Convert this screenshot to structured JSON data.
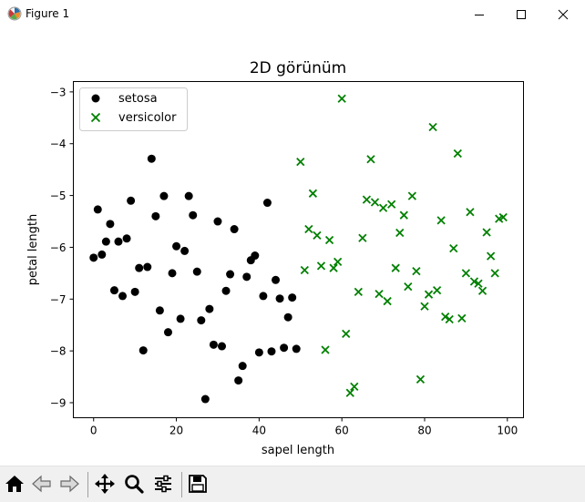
{
  "window": {
    "title": "Figure 1",
    "icons": [
      "matplotlib-figure-icon",
      "minimize-icon",
      "maximize-icon",
      "close-icon"
    ]
  },
  "toolbar": {
    "buttons": [
      "home-icon",
      "back-icon",
      "forward-icon",
      "pan-icon",
      "zoom-icon",
      "configure-subplots-icon",
      "save-icon"
    ]
  },
  "colors": {
    "setosa": "#000000",
    "versicolor": "#008000",
    "toolbar_bg": "#f0f0f0"
  },
  "chart_data": {
    "type": "scatter",
    "title": "2D görünüm",
    "xlabel": "sapel length",
    "ylabel": "petal length",
    "xlim": [
      -4.9,
      103.9
    ],
    "ylim": [
      -9.29,
      -2.8
    ],
    "xticks": [
      0,
      20,
      40,
      60,
      80,
      100
    ],
    "xtick_labels": [
      "0",
      "20",
      "40",
      "60",
      "80",
      "100"
    ],
    "yticks": [
      -3,
      -4,
      -5,
      -6,
      -7,
      -8,
      -9
    ],
    "ytick_labels": [
      "−3",
      "−4",
      "−5",
      "−6",
      "−7",
      "−8",
      "−9"
    ],
    "grid": false,
    "legend_position": "upper-left",
    "series": [
      {
        "name": "setosa",
        "marker": "circle",
        "color": "#000000",
        "points": [
          [
            0,
            -6.2
          ],
          [
            1,
            -5.27
          ],
          [
            2,
            -6.14
          ],
          [
            3,
            -5.89
          ],
          [
            4,
            -5.55
          ],
          [
            5,
            -6.83
          ],
          [
            6,
            -5.89
          ],
          [
            7,
            -6.94
          ],
          [
            8,
            -5.83
          ],
          [
            9,
            -5.1
          ],
          [
            10,
            -6.86
          ],
          [
            11,
            -6.4
          ],
          [
            12,
            -7.99
          ],
          [
            13,
            -6.38
          ],
          [
            14,
            -4.29
          ],
          [
            15,
            -5.4
          ],
          [
            16,
            -7.22
          ],
          [
            17,
            -5.01
          ],
          [
            18,
            -7.64
          ],
          [
            19,
            -6.5
          ],
          [
            20,
            -5.98
          ],
          [
            21,
            -7.38
          ],
          [
            22,
            -6.07
          ],
          [
            23,
            -5.01
          ],
          [
            24,
            -5.38
          ],
          [
            25,
            -6.47
          ],
          [
            26,
            -7.41
          ],
          [
            27,
            -8.93
          ],
          [
            28,
            -7.19
          ],
          [
            29,
            -7.88
          ],
          [
            30,
            -5.5
          ],
          [
            31,
            -7.91
          ],
          [
            32,
            -6.84
          ],
          [
            33,
            -6.52
          ],
          [
            34,
            -5.65
          ],
          [
            35,
            -8.57
          ],
          [
            36,
            -8.29
          ],
          [
            37,
            -6.57
          ],
          [
            38,
            -6.25
          ],
          [
            39,
            -6.16
          ],
          [
            40,
            -8.03
          ],
          [
            41,
            -6.94
          ],
          [
            42,
            -5.14
          ],
          [
            43,
            -8.01
          ],
          [
            44,
            -6.63
          ],
          [
            45,
            -6.99
          ],
          [
            46,
            -7.94
          ],
          [
            47,
            -7.35
          ],
          [
            48,
            -6.97
          ],
          [
            49,
            -7.96
          ]
        ]
      },
      {
        "name": "versicolor",
        "marker": "x",
        "color": "#008000",
        "points": [
          [
            50,
            -4.35
          ],
          [
            51,
            -6.44
          ],
          [
            52,
            -5.65
          ],
          [
            53,
            -4.96
          ],
          [
            54,
            -5.77
          ],
          [
            55,
            -6.36
          ],
          [
            56,
            -7.98
          ],
          [
            57,
            -5.86
          ],
          [
            58,
            -6.4
          ],
          [
            59,
            -6.28
          ],
          [
            60,
            -3.13
          ],
          [
            61,
            -7.67
          ],
          [
            62,
            -8.81
          ],
          [
            63,
            -8.69
          ],
          [
            64,
            -6.86
          ],
          [
            65,
            -5.82
          ],
          [
            66,
            -5.08
          ],
          [
            67,
            -4.3
          ],
          [
            68,
            -5.13
          ],
          [
            69,
            -6.9
          ],
          [
            70,
            -5.24
          ],
          [
            71,
            -7.04
          ],
          [
            72,
            -5.17
          ],
          [
            73,
            -6.4
          ],
          [
            74,
            -5.72
          ],
          [
            75,
            -5.38
          ],
          [
            76,
            -6.76
          ],
          [
            77,
            -5.01
          ],
          [
            78,
            -6.46
          ],
          [
            79,
            -8.55
          ],
          [
            80,
            -7.14
          ],
          [
            81,
            -6.91
          ],
          [
            82,
            -3.68
          ],
          [
            83,
            -6.83
          ],
          [
            84,
            -5.48
          ],
          [
            85,
            -7.34
          ],
          [
            86,
            -7.39
          ],
          [
            87,
            -6.02
          ],
          [
            88,
            -4.19
          ],
          [
            89,
            -7.37
          ],
          [
            90,
            -6.5
          ],
          [
            91,
            -5.32
          ],
          [
            92,
            -6.66
          ],
          [
            93,
            -6.7
          ],
          [
            94,
            -6.84
          ],
          [
            95,
            -5.71
          ],
          [
            96,
            -6.17
          ],
          [
            97,
            -6.5
          ],
          [
            98,
            -5.45
          ],
          [
            99,
            -5.42
          ]
        ]
      }
    ]
  }
}
